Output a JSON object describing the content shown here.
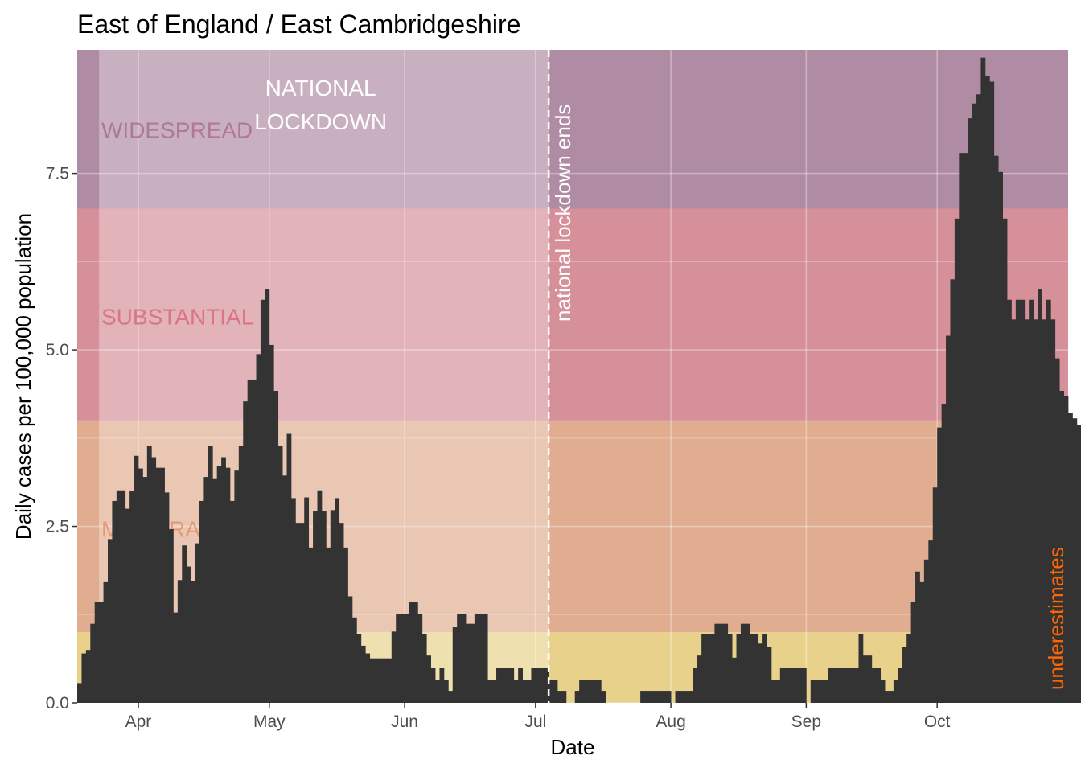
{
  "chart_data": {
    "type": "bar",
    "title": "East of England / East Cambridgeshire",
    "xlabel": "Date",
    "ylabel": "Daily cases per 100,000 population",
    "ylim": [
      0,
      9.25
    ],
    "xlim": [
      "2020-03-18",
      "2020-10-31"
    ],
    "y_ticks": [
      0,
      2.5,
      5,
      7.5
    ],
    "y_tick_labels": [
      "0.0",
      "2.5",
      "5.0",
      "7.5"
    ],
    "x_ticks": [
      {
        "date": "2020-04-01",
        "label": "Apr"
      },
      {
        "date": "2020-05-01",
        "label": "May"
      },
      {
        "date": "2020-06-01",
        "label": "Jun"
      },
      {
        "date": "2020-07-01",
        "label": "Jul"
      },
      {
        "date": "2020-08-01",
        "label": "Aug"
      },
      {
        "date": "2020-09-01",
        "label": "Sep"
      },
      {
        "date": "2020-10-01",
        "label": "Oct"
      }
    ],
    "grid": true,
    "bar_color": "#333333",
    "start_date": "2020-03-18",
    "values": [
      0.28,
      0.7,
      0.75,
      1.12,
      1.43,
      1.43,
      1.71,
      2.32,
      2.86,
      3.01,
      3.01,
      2.75,
      3.0,
      3.5,
      3.32,
      3.2,
      3.64,
      3.48,
      3.33,
      3.33,
      2.98,
      2.46,
      1.28,
      1.74,
      2.23,
      1.93,
      1.73,
      2.26,
      2.86,
      3.2,
      3.64,
      3.17,
      3.36,
      3.48,
      3.33,
      2.86,
      3.29,
      3.64,
      4.27,
      4.58,
      4.58,
      4.94,
      5.71,
      5.86,
      5.07,
      4.42,
      3.64,
      3.22,
      3.81,
      2.9,
      2.55,
      2.55,
      2.91,
      2.2,
      2.72,
      3.01,
      2.72,
      2.2,
      2.73,
      2.9,
      2.55,
      2.2,
      1.51,
      1.21,
      0.97,
      0.81,
      0.7,
      0.63,
      0.63,
      0.63,
      0.63,
      0.63,
      1.01,
      1.26,
      1.26,
      1.26,
      1.43,
      1.43,
      1.26,
      0.97,
      0.67,
      0.49,
      0.33,
      0.49,
      0.33,
      0.17,
      1.07,
      1.26,
      1.26,
      1.12,
      1.12,
      1.26,
      1.26,
      1.26,
      0.33,
      0.33,
      0.49,
      0.49,
      0.49,
      0.49,
      0.33,
      0.49,
      0.33,
      0.33,
      0.49,
      0.49,
      0.49,
      0.49,
      0.33,
      0.33,
      0.17,
      0.17,
      0.0,
      0.0,
      0.17,
      0.33,
      0.33,
      0.33,
      0.33,
      0.33,
      0.17,
      0.0,
      0.0,
      0.0,
      0.0,
      0.0,
      0.0,
      0.0,
      0.0,
      0.17,
      0.17,
      0.17,
      0.17,
      0.17,
      0.17,
      0.17,
      0.0,
      0.17,
      0.17,
      0.17,
      0.17,
      0.49,
      0.67,
      0.97,
      0.97,
      0.97,
      1.12,
      1.12,
      1.12,
      0.97,
      0.64,
      0.97,
      1.12,
      1.12,
      0.97,
      0.97,
      0.84,
      0.97,
      0.79,
      0.33,
      0.33,
      0.49,
      0.49,
      0.49,
      0.49,
      0.49,
      0.49,
      0.0,
      0.33,
      0.33,
      0.33,
      0.33,
      0.49,
      0.49,
      0.49,
      0.49,
      0.49,
      0.49,
      0.49,
      0.97,
      0.67,
      0.67,
      0.49,
      0.49,
      0.33,
      0.17,
      0.17,
      0.33,
      0.49,
      0.79,
      0.97,
      1.43,
      1.86,
      1.71,
      2.03,
      2.3,
      3.05,
      3.9,
      4.23,
      5.2,
      6.0,
      6.86,
      7.79,
      7.79,
      8.28,
      8.49,
      8.62,
      9.14,
      8.88,
      8.8,
      7.75,
      7.52,
      6.86,
      5.71,
      5.43,
      5.71,
      5.71,
      5.43,
      5.71,
      5.43,
      5.86,
      5.43,
      5.71,
      5.43,
      4.88,
      4.42,
      4.35,
      4.11,
      4.03,
      3.93,
      3.9,
      3.77
    ]
  },
  "bands": [
    {
      "name": "green",
      "label": "",
      "ymin": 0,
      "ymax": 1,
      "color": "#e8d28b"
    },
    {
      "name": "moderate",
      "label": "MODERATE",
      "ymin": 1,
      "ymax": 4,
      "color": "#e0ad90",
      "label_color": "#e39a76"
    },
    {
      "name": "substantial",
      "label": "SUBSTANTIAL",
      "ymin": 4,
      "ymax": 7,
      "color": "#d6909a",
      "label_color": "#d97584"
    },
    {
      "name": "widespread",
      "label": "WIDESPREAD",
      "ymin": 7,
      "ymax": 9.25,
      "color": "#af8ba4",
      "label_color": "#b07796"
    }
  ],
  "lockdown": {
    "label_line1": "NATIONAL",
    "label_line2": "LOCKDOWN",
    "start": "2020-03-23",
    "end": "2020-07-04",
    "overlay_color": "#ffffff",
    "end_label": "national lockdown ends"
  },
  "underestimate_label": "underestimates",
  "underestimate_color": "#ff6600"
}
